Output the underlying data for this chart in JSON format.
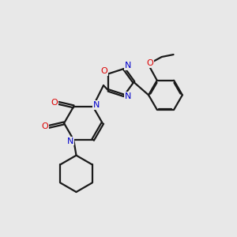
{
  "bg_color": "#e8e8e8",
  "bond_color": "#1a1a1a",
  "nitrogen_color": "#0000cc",
  "oxygen_color": "#dd0000",
  "line_width": 1.6,
  "fig_size": [
    3.0,
    3.0
  ],
  "dpi": 100,
  "xlim": [
    0,
    10
  ],
  "ylim": [
    0,
    10
  ]
}
